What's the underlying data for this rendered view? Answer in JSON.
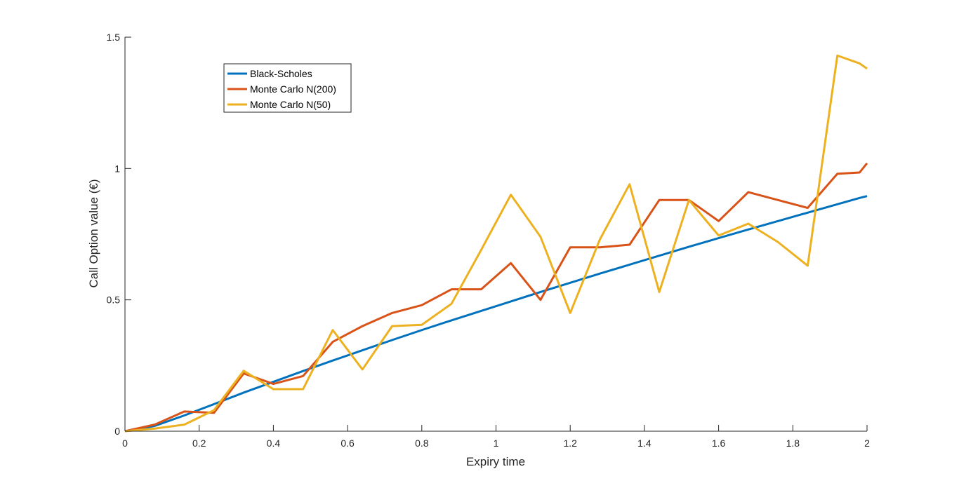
{
  "chart_data": {
    "type": "line",
    "title": "",
    "xlabel": "Expiry time",
    "ylabel": "Call Option value (€)",
    "xlim": [
      0,
      2
    ],
    "ylim": [
      0,
      1.5
    ],
    "xticks": [
      0,
      0.2,
      0.4,
      0.6,
      0.8,
      1,
      1.2,
      1.4,
      1.6,
      1.8,
      2
    ],
    "xtick_labels": [
      "0",
      "0.2",
      "0.4",
      "0.6",
      "0.8",
      "1",
      "1.2",
      "1.4",
      "1.6",
      "1.8",
      "2"
    ],
    "yticks": [
      0,
      0.5,
      1,
      1.5
    ],
    "ytick_labels": [
      "0",
      "0.5",
      "1",
      "1.5"
    ],
    "grid": false,
    "legend_position": "top-left",
    "x": [
      0,
      0.08,
      0.16,
      0.24,
      0.32,
      0.4,
      0.48,
      0.56,
      0.64,
      0.72,
      0.8,
      0.88,
      0.96,
      1.04,
      1.12,
      1.2,
      1.28,
      1.36,
      1.44,
      1.52,
      1.6,
      1.68,
      1.76,
      1.84,
      1.92,
      1.98,
      2.0
    ],
    "series": [
      {
        "name": "Black-Scholes",
        "color": "#0072BD",
        "values": [
          0,
          0.02,
          0.06,
          0.103,
          0.147,
          0.188,
          0.229,
          0.269,
          0.308,
          0.347,
          0.385,
          0.422,
          0.458,
          0.494,
          0.53,
          0.565,
          0.6,
          0.634,
          0.668,
          0.702,
          0.735,
          0.768,
          0.8,
          0.832,
          0.864,
          0.888,
          0.895
        ]
      },
      {
        "name": "Monte Carlo N(200)",
        "color": "#D95319",
        "values": [
          0,
          0.025,
          0.075,
          0.07,
          0.22,
          0.18,
          0.21,
          0.34,
          0.4,
          0.45,
          0.48,
          0.54,
          0.54,
          0.64,
          0.5,
          0.7,
          0.7,
          0.71,
          0.88,
          0.88,
          0.8,
          0.91,
          0.88,
          0.85,
          0.98,
          0.985,
          1.02
        ]
      },
      {
        "name": "Monte Carlo N(50)",
        "color": "#EDB120",
        "values": [
          0,
          0.01,
          0.025,
          0.08,
          0.23,
          0.16,
          0.16,
          0.385,
          0.235,
          0.4,
          0.405,
          0.485,
          0.69,
          0.9,
          0.74,
          0.45,
          0.73,
          0.94,
          0.53,
          0.88,
          0.745,
          0.79,
          0.72,
          0.63,
          1.43,
          1.4,
          1.38
        ]
      }
    ]
  }
}
